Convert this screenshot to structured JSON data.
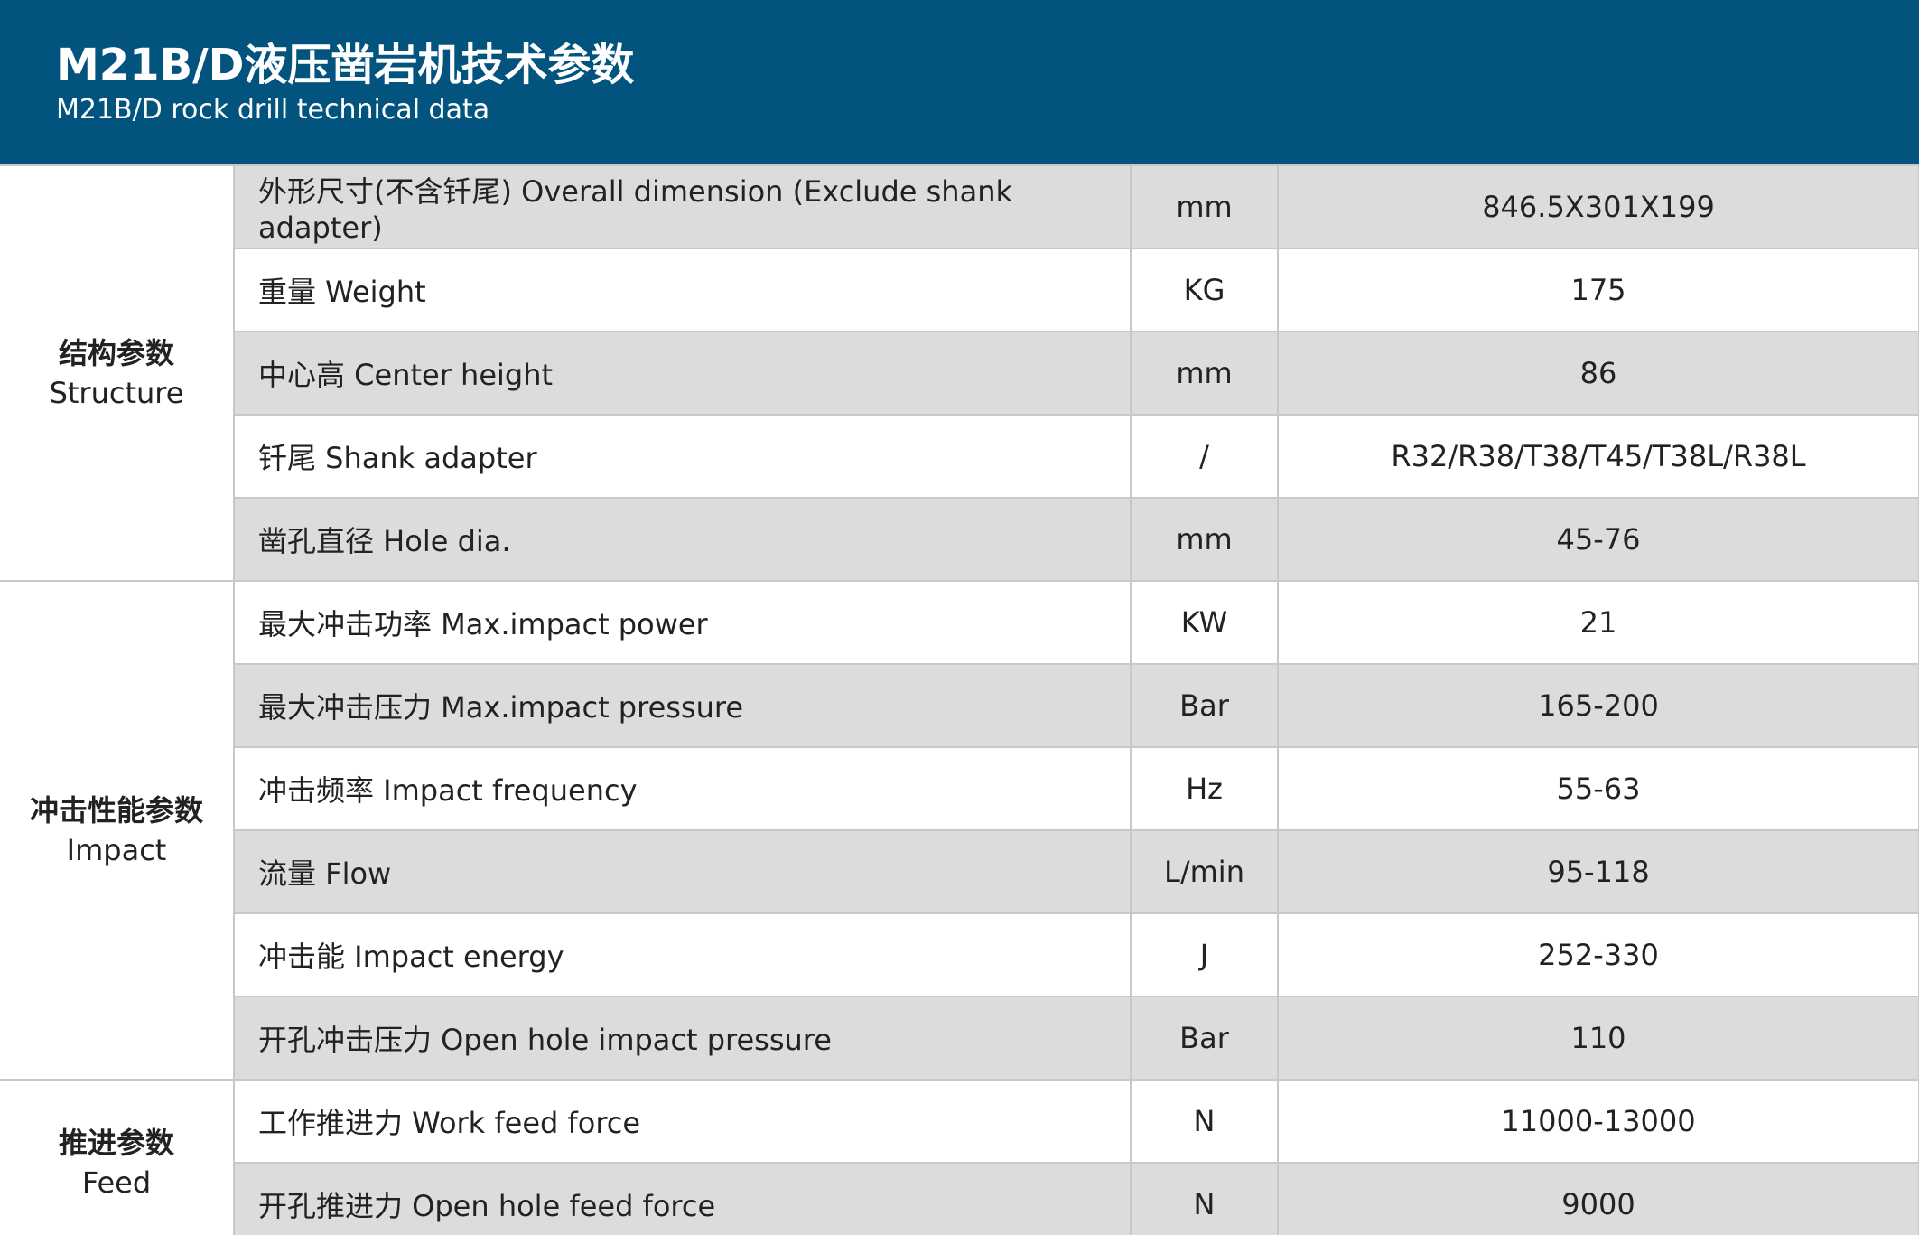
{
  "header": {
    "title": "M21B/D液压凿岩机技术参数",
    "subtitle": "M21B/D rock drill technical data"
  },
  "table": {
    "groups": [
      {
        "label_cn": "结构参数",
        "label_en": "Structure",
        "rows": [
          [
            "外形尺寸(不含钎尾) Overall dimension (Exclude shank adapter)",
            "mm",
            "846.5X301X199"
          ],
          [
            "重量 Weight",
            "KG",
            "175"
          ],
          [
            "中心高 Center height",
            "mm",
            "86"
          ],
          [
            "钎尾 Shank adapter",
            "/",
            "R32/R38/T38/T45/T38L/R38L"
          ],
          [
            "凿孔直径 Hole dia.",
            "mm",
            "45-76"
          ]
        ]
      },
      {
        "label_cn": "冲击性能参数",
        "label_en": "Impact",
        "rows": [
          [
            "最大冲击功率 Max.impact power",
            "KW",
            "21"
          ],
          [
            "最大冲击压力 Max.impact pressure",
            "Bar",
            "165-200"
          ],
          [
            "冲击频率 Impact frequency",
            "Hz",
            "55-63"
          ],
          [
            "流量 Flow",
            "L/min",
            "95-118"
          ],
          [
            "冲击能 Impact energy",
            "J",
            "252-330"
          ],
          [
            "开孔冲击压力 Open hole impact pressure",
            "Bar",
            "110"
          ]
        ]
      },
      {
        "label_cn": "推进参数",
        "label_en": "Feed",
        "rows": [
          [
            "工作推进力 Work feed force",
            "N",
            "11000-13000"
          ],
          [
            "开孔推进力 Open hole feed force",
            "N",
            "9000"
          ]
        ]
      }
    ]
  }
}
